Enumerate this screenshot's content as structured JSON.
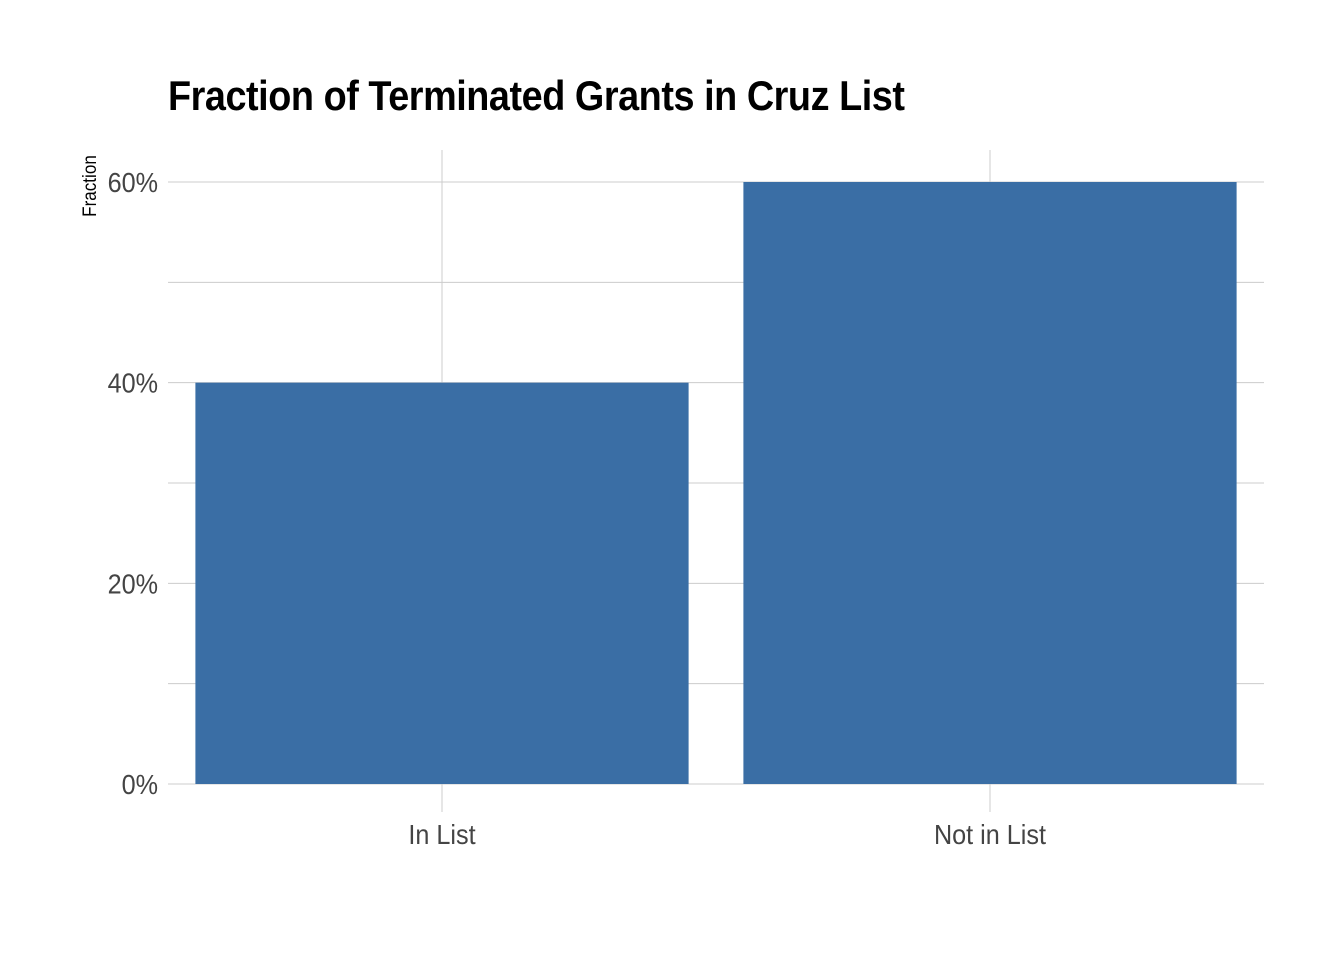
{
  "chart_data": {
    "type": "bar",
    "title": "Fraction of Terminated Grants in Cruz List",
    "xlabel": "",
    "ylabel": "Fraction",
    "categories": [
      "In List",
      "Not in List"
    ],
    "values": [
      0.4,
      0.6
    ],
    "ylim": [
      0,
      0.63
    ],
    "y_ticks": [
      0,
      0.2,
      0.4,
      0.6
    ],
    "y_minor_ticks": [
      0.1,
      0.3,
      0.5
    ],
    "y_tick_labels": [
      "0%",
      "20%",
      "40%",
      "60%"
    ],
    "grid": true,
    "bar_color": "#3a6ea5",
    "grid_color": "#cccccc",
    "tick_label_color": "#444444"
  }
}
